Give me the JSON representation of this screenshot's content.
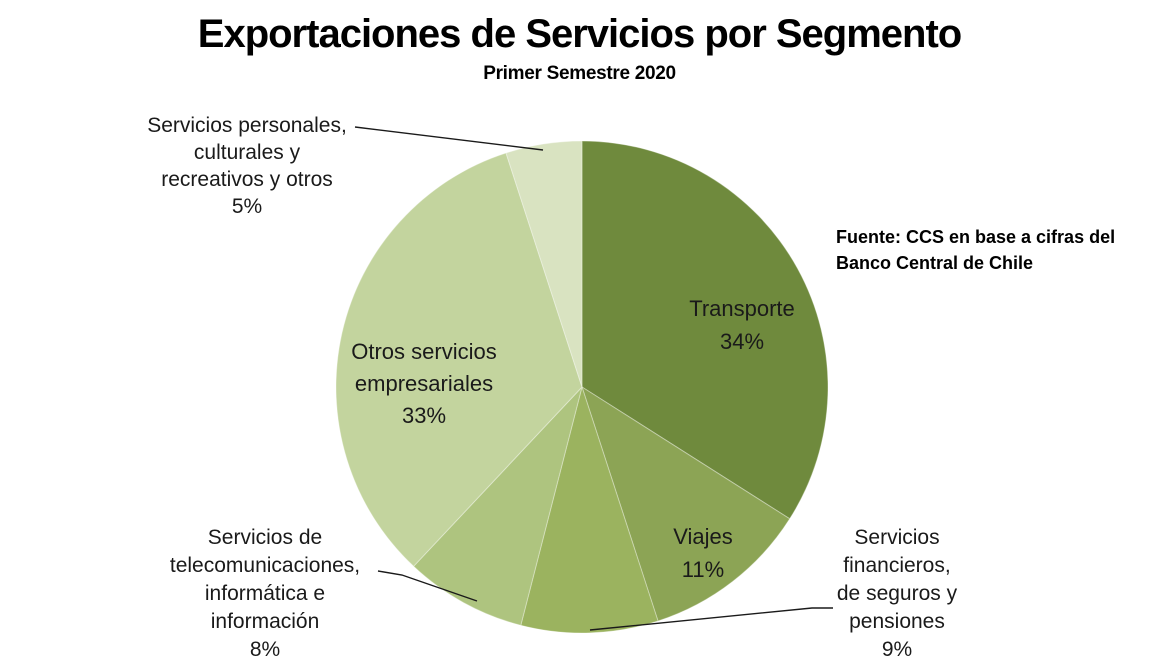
{
  "page": {
    "background": "#ffffff"
  },
  "chart_data": {
    "type": "pie",
    "title": "Exportaciones de Servicios por Segmento",
    "subtitle": "Primer Semestre 2020",
    "source": "Fuente: CCS en base a cifras del Banco Central de Chile",
    "source_lines": [
      "Fuente: CCS en base a cifras del",
      "Banco Central de Chile"
    ],
    "direction": "clockwise",
    "start_angle_deg": 0,
    "legend": "none",
    "segments": [
      {
        "label": "Transporte",
        "value": 34,
        "percent_label": "34%",
        "color": "#6F8A3D",
        "label_placement": "inside",
        "label_lines": [
          "Transporte",
          "34%"
        ]
      },
      {
        "label": "Viajes",
        "value": 11,
        "percent_label": "11%",
        "color": "#8CA455",
        "label_placement": "inside",
        "label_lines": [
          "Viajes",
          "11%"
        ]
      },
      {
        "label": "Servicios financieros, de seguros y pensiones",
        "value": 9,
        "percent_label": "9%",
        "color": "#9BB35F",
        "label_placement": "outside",
        "label_lines": [
          "Servicios",
          "financieros,",
          "de seguros y",
          "pensiones",
          "9%"
        ]
      },
      {
        "label": "Servicios de telecomunicaciones, informática e información",
        "value": 8,
        "percent_label": "8%",
        "color": "#AEC47F",
        "label_placement": "outside",
        "label_lines": [
          "Servicios de",
          "telecomunicaciones,",
          "informática e",
          "información",
          "8%"
        ]
      },
      {
        "label": "Otros servicios empresariales",
        "value": 33,
        "percent_label": "33%",
        "color": "#C3D49E",
        "label_placement": "inside",
        "label_lines": [
          "Otros servicios",
          "empresariales",
          "33%"
        ]
      },
      {
        "label": "Servicios personales, culturales y recreativos y otros",
        "value": 5,
        "percent_label": "5%",
        "color": "#D9E3C1",
        "label_placement": "outside",
        "label_lines": [
          "Servicios personales,",
          "culturales y",
          "recreativos y otros",
          "5%"
        ]
      }
    ]
  }
}
